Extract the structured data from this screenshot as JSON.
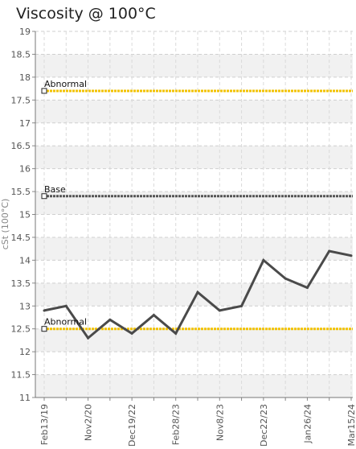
{
  "chart_data": {
    "type": "line",
    "title": "Viscosity @ 100°C",
    "ylabel": "cSt (100°C)",
    "xlabel": "",
    "ylim": [
      11,
      19
    ],
    "yticks": [
      11,
      11.5,
      12,
      12.5,
      13,
      13.5,
      14,
      14.5,
      15,
      15.5,
      16,
      16.5,
      17,
      17.5,
      18,
      18.5,
      19
    ],
    "ytick_labels": [
      "11",
      "11.5",
      "12",
      "12.5",
      "13",
      "13.5",
      "14",
      "14.5",
      "15",
      "15.5",
      "16",
      "16.5",
      "17",
      "17.5",
      "18",
      "18.5",
      "19"
    ],
    "x_tick_labels": [
      {
        "label": "Feb13/19",
        "index": 0
      },
      {
        "label": "Nov2/20",
        "index": 2
      },
      {
        "label": "Dec19/22",
        "index": 4
      },
      {
        "label": "Feb28/23",
        "index": 6
      },
      {
        "label": "Nov8/23",
        "index": 8
      },
      {
        "label": "Dec22/23",
        "index": 10
      },
      {
        "label": "Jan26/24",
        "index": 12
      },
      {
        "label": "Mar15/24",
        "index": 14
      }
    ],
    "series": [
      {
        "values": [
          12.9,
          13.0,
          12.3,
          12.7,
          12.4,
          12.8,
          12.4,
          13.3,
          12.9,
          13.0,
          14.0,
          13.6,
          13.4,
          14.2,
          14.1
        ],
        "color": "#4a4a4a"
      }
    ],
    "reference_lines": [
      {
        "label": "Abnormal",
        "value": 17.7,
        "color": "#f2c200"
      },
      {
        "label": "Base",
        "value": 15.4,
        "color": "#555555"
      },
      {
        "label": "Abnormal",
        "value": 12.5,
        "color": "#f2c200"
      }
    ],
    "grid": true,
    "legend": "none"
  }
}
